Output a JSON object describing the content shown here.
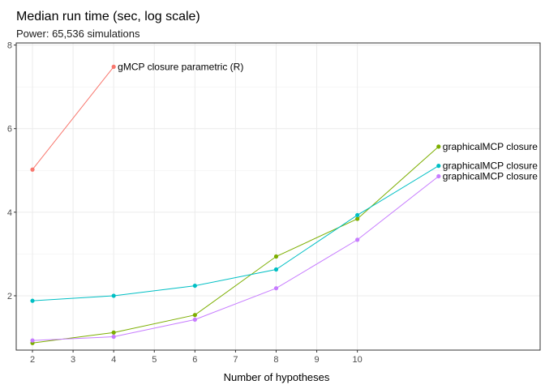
{
  "chart_data": {
    "type": "line",
    "title": "Median run time (sec, log scale)",
    "subtitle": "Power: 65,536 simulations",
    "xlabel": "Number of hypotheses",
    "ylabel": "",
    "xlim": [
      1.6,
      14.5
    ],
    "ylim": [
      0.7,
      8.05
    ],
    "x_ticks": [
      2,
      3,
      4,
      5,
      6,
      7,
      8,
      9,
      10
    ],
    "y_ticks": [
      2,
      4,
      6,
      8
    ],
    "grid": true,
    "legend": "none",
    "series": [
      {
        "name": "gMCP closure parametric (R)",
        "color": "#F8766D",
        "x": [
          2,
          4
        ],
        "values": [
          5.02,
          7.48
        ]
      },
      {
        "name": "graphicalMCP closure",
        "color": "#7CAE00",
        "x": [
          2,
          4,
          6,
          8,
          10,
          12
        ],
        "values": [
          0.87,
          1.12,
          1.54,
          2.94,
          3.84,
          5.57
        ]
      },
      {
        "name": "graphicalMCP closure",
        "color": "#00BFC4",
        "x": [
          2,
          4,
          6,
          8,
          10,
          12
        ],
        "values": [
          1.88,
          2.0,
          2.24,
          2.63,
          3.93,
          5.11
        ]
      },
      {
        "name": "graphicalMCP closure",
        "color": "#C77CFF",
        "x": [
          2,
          4,
          6,
          8,
          10,
          12
        ],
        "values": [
          0.93,
          1.02,
          1.43,
          2.18,
          3.34,
          4.86
        ]
      }
    ]
  }
}
